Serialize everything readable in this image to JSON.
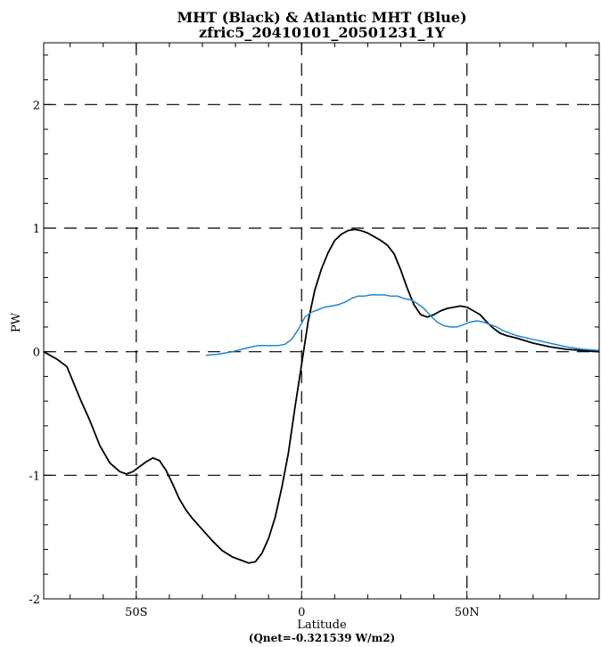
{
  "chart_data": {
    "type": "line",
    "title": "MHT (Black) & Atlantic MHT (Blue)",
    "subtitle": "zfric5_20410101_20501231_1Y",
    "xlabel": "Latitude",
    "ylabel": "PW",
    "note": "(Qnet=-0.321539 W/m2)",
    "xlim": [
      -78,
      90
    ],
    "ylim": [
      -2,
      2.5
    ],
    "x_ticks": [
      {
        "value": -50,
        "label": "50S"
      },
      {
        "value": 0,
        "label": "0"
      },
      {
        "value": 50,
        "label": "50N"
      }
    ],
    "y_ticks": [
      {
        "value": -2,
        "label": "-2"
      },
      {
        "value": -1,
        "label": "-1"
      },
      {
        "value": 0,
        "label": "0"
      },
      {
        "value": 1,
        "label": "1"
      },
      {
        "value": 2,
        "label": "2"
      }
    ],
    "grid": true,
    "series": [
      {
        "color": "#000000",
        "x": [
          -78,
          -74,
          -71,
          -69,
          -67,
          -64,
          -61,
          -58,
          -55,
          -53,
          -51,
          -49,
          -47,
          -45,
          -43,
          -41,
          -39,
          -37,
          -35,
          -33,
          -30,
          -27,
          -24,
          -21,
          -18,
          -16,
          -14,
          -12,
          -10,
          -8,
          -6,
          -4,
          -2,
          0,
          2,
          4,
          6,
          8,
          10,
          12,
          14,
          16,
          18,
          20,
          22,
          24,
          26,
          28,
          30,
          32,
          34,
          36,
          38,
          40,
          42,
          44,
          46,
          48,
          50,
          52,
          54,
          56,
          58,
          60,
          62,
          65,
          70,
          75,
          80,
          85,
          90
        ],
        "y": [
          0.0,
          -0.06,
          -0.12,
          -0.25,
          -0.38,
          -0.56,
          -0.76,
          -0.9,
          -0.97,
          -0.99,
          -0.97,
          -0.93,
          -0.89,
          -0.86,
          -0.88,
          -0.96,
          -1.07,
          -1.19,
          -1.28,
          -1.35,
          -1.44,
          -1.53,
          -1.61,
          -1.66,
          -1.69,
          -1.71,
          -1.7,
          -1.63,
          -1.51,
          -1.34,
          -1.1,
          -0.82,
          -0.45,
          -0.1,
          0.25,
          0.5,
          0.67,
          0.8,
          0.9,
          0.95,
          0.98,
          0.99,
          0.98,
          0.96,
          0.93,
          0.9,
          0.86,
          0.79,
          0.66,
          0.51,
          0.38,
          0.3,
          0.28,
          0.3,
          0.33,
          0.35,
          0.36,
          0.37,
          0.36,
          0.33,
          0.3,
          0.24,
          0.19,
          0.15,
          0.13,
          0.11,
          0.07,
          0.04,
          0.02,
          0.01,
          0.0
        ]
      },
      {
        "color": "#1a87d8",
        "x": [
          -29,
          -25,
          -21,
          -18,
          -15,
          -13,
          -11,
          -9,
          -7,
          -5,
          -3,
          -1,
          1,
          3,
          5,
          7,
          9,
          11,
          13,
          15,
          17,
          19,
          21,
          23,
          25,
          27,
          29,
          31,
          33,
          35,
          37,
          39,
          41,
          43,
          45,
          47,
          49,
          51,
          53,
          55,
          57,
          59,
          61,
          63,
          65,
          70,
          75,
          80,
          85,
          90
        ],
        "y": [
          -0.03,
          -0.02,
          0.0,
          0.02,
          0.04,
          0.05,
          0.05,
          0.05,
          0.05,
          0.06,
          0.1,
          0.18,
          0.28,
          0.32,
          0.34,
          0.36,
          0.37,
          0.38,
          0.4,
          0.43,
          0.45,
          0.45,
          0.46,
          0.46,
          0.46,
          0.45,
          0.45,
          0.43,
          0.42,
          0.39,
          0.35,
          0.29,
          0.24,
          0.21,
          0.2,
          0.2,
          0.22,
          0.24,
          0.25,
          0.24,
          0.22,
          0.2,
          0.17,
          0.15,
          0.13,
          0.1,
          0.07,
          0.04,
          0.02,
          0.01
        ]
      }
    ]
  }
}
